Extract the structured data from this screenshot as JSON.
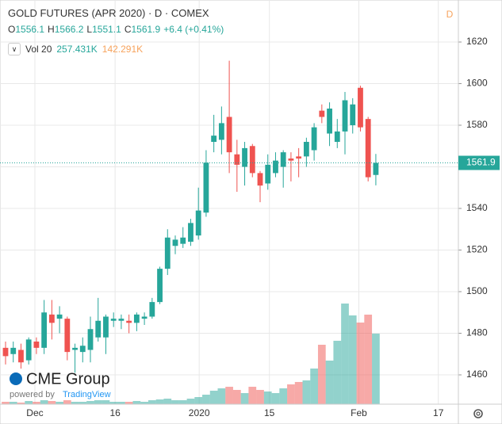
{
  "chart_data": {
    "type": "candlestick",
    "title": "GOLD FUTURES (APR 2020) · D · COMEX",
    "resolution_badge": "D",
    "ohlc_prefixes": [
      "O",
      "H",
      "L",
      "C"
    ],
    "change_label": "+6.4 (+0.41%)",
    "volume_name": "Vol 20",
    "volume_value_label": "257.431K",
    "volume_ma": 142291,
    "volume_ma_label": "142.291K",
    "up_color": "#26a69a",
    "down_color": "#ef5350",
    "volume_ma_color": "#f7a35c",
    "categories": [
      null,
      null,
      null,
      null,
      null,
      null,
      null,
      null,
      null,
      null,
      null,
      null,
      null,
      null,
      null,
      null,
      null,
      null,
      null,
      null,
      null,
      null,
      null,
      null,
      null,
      null,
      null,
      null,
      null,
      null,
      null,
      null,
      null,
      null,
      null,
      null,
      null,
      null,
      null,
      null,
      null,
      null,
      null,
      null,
      null,
      null,
      null,
      null,
      null
    ],
    "open": [
      1473,
      1470,
      1472,
      1467,
      1476,
      1473,
      1489,
      1487,
      1487,
      1472,
      1471,
      1472,
      1478,
      1478,
      1486,
      1486,
      1486,
      1485,
      1487,
      1488,
      1495,
      1511,
      1522,
      1523,
      1524,
      1527,
      1538,
      1572,
      1573,
      1584,
      1566,
      1560,
      1570,
      1557,
      1552,
      1557,
      1560,
      1564,
      1565,
      1565,
      1568,
      1587,
      1576,
      1572,
      1577,
      1580,
      1598,
      1583,
      1556.1
    ],
    "high": [
      1476,
      1476,
      1475,
      1478,
      1478,
      1496,
      1496,
      1493,
      1488,
      1475,
      1478,
      1488,
      1497,
      1489,
      1490,
      1489,
      1489,
      1490,
      1490,
      1497,
      1512,
      1530,
      1527,
      1531,
      1535,
      1550,
      1568,
      1585,
      1589,
      1611,
      1573,
      1572,
      1571,
      1558,
      1566,
      1567,
      1568,
      1567,
      1569,
      1574,
      1581,
      1590,
      1591,
      1583,
      1596,
      1593,
      1599,
      1584,
      1566.2
    ],
    "low": [
      1465,
      1466,
      1463,
      1465,
      1470,
      1470,
      1477,
      1480,
      1467,
      1461,
      1466,
      1466,
      1476,
      1470,
      1483,
      1482,
      1480,
      1481,
      1484,
      1487,
      1494,
      1508,
      1518,
      1521,
      1522,
      1525,
      1536,
      1567,
      1566,
      1557,
      1548,
      1551,
      1555,
      1543,
      1549,
      1555,
      1550,
      1553,
      1555,
      1560,
      1563,
      1581,
      1570,
      1569,
      1566,
      1576,
      1577,
      1553,
      1551.1
    ],
    "close": [
      1469,
      1473,
      1466,
      1477,
      1473,
      1490,
      1485,
      1489,
      1471,
      1473,
      1474,
      1482,
      1486,
      1488,
      1487,
      1487,
      1485,
      1489,
      1488,
      1495,
      1511,
      1526,
      1525,
      1526,
      1533,
      1539,
      1562,
      1575,
      1581,
      1567,
      1561,
      1569,
      1557,
      1551,
      1561,
      1563,
      1567,
      1563,
      1564,
      1572,
      1579,
      1584,
      1588,
      1577,
      1592,
      1590,
      1579,
      1555,
      1561.9
    ],
    "volume": [
      8700,
      8700,
      5800,
      11600,
      8700,
      14500,
      11600,
      8700,
      14500,
      8700,
      8700,
      11600,
      14500,
      14500,
      8700,
      8700,
      8700,
      11600,
      8700,
      14500,
      17400,
      20200,
      14500,
      14500,
      20200,
      26000,
      34700,
      49200,
      57800,
      63600,
      52100,
      40500,
      63600,
      52100,
      46300,
      40500,
      57800,
      72300,
      81000,
      86800,
      130100,
      216900,
      159100,
      231400,
      367300,
      323900,
      297900,
      326800,
      257431
    ],
    "ylim": [
      1445.9,
      1640.2
    ],
    "yticks": [
      1460,
      1480,
      1500,
      1520,
      1540,
      1560,
      1580,
      1600,
      1620
    ],
    "volume_ylim": [
      0,
      1475000
    ],
    "xlim": [
      -0.72,
      58.7
    ],
    "xticks": [
      {
        "value": 3.8,
        "label": "Dec"
      },
      {
        "value": 14.2,
        "label": "16"
      },
      {
        "value": 25.1,
        "label": "2020"
      },
      {
        "value": 34.2,
        "label": "15"
      },
      {
        "value": 45.8,
        "label": "Feb"
      },
      {
        "value": 56.1,
        "label": "17"
      }
    ],
    "grid": true
  },
  "branding": {
    "logo": "CME Group",
    "powered": "powered by",
    "platform": "TradingView"
  }
}
